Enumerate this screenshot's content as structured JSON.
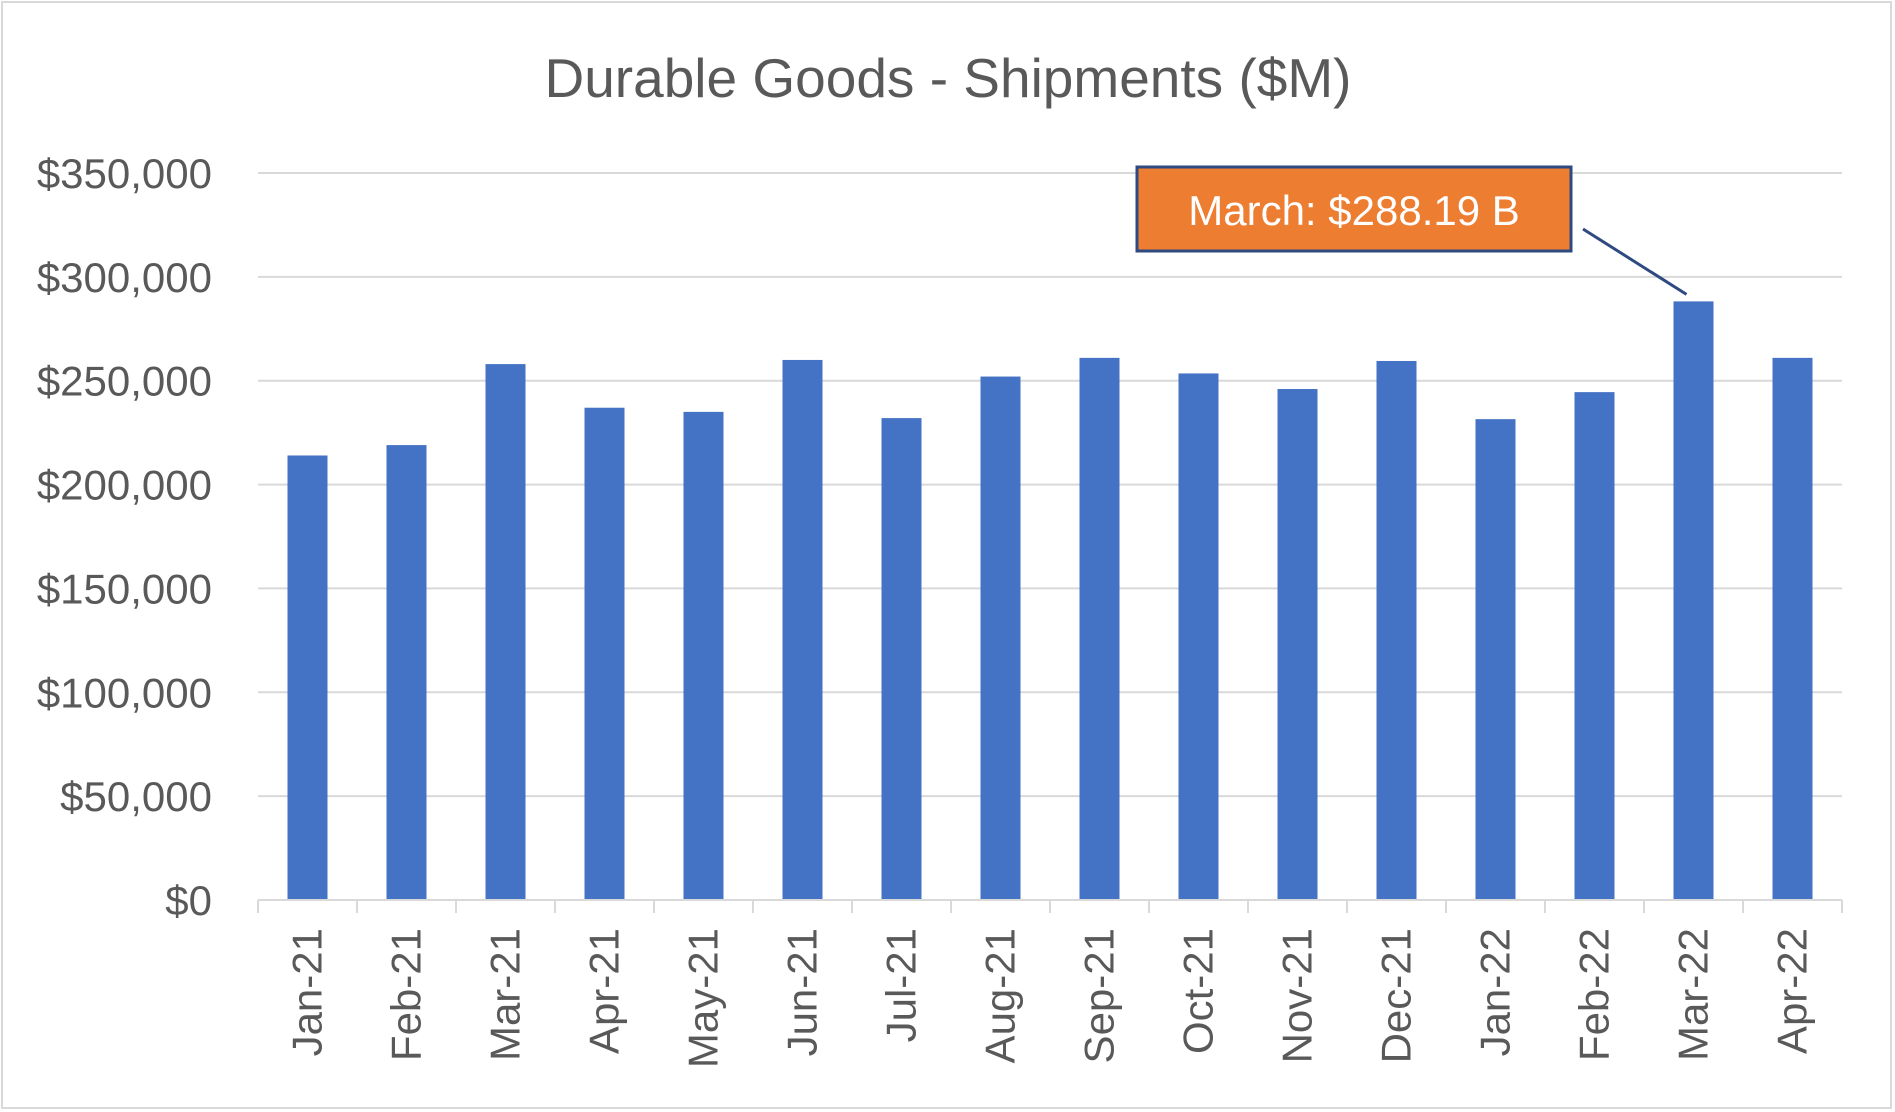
{
  "chart_data": {
    "type": "bar",
    "title": "Durable Goods - Shipments ($M)",
    "xlabel": "",
    "ylabel": "",
    "categories": [
      "Jan-21",
      "Feb-21",
      "Mar-21",
      "Apr-21",
      "May-21",
      "Jun-21",
      "Jul-21",
      "Aug-21",
      "Sep-21",
      "Oct-21",
      "Nov-21",
      "Dec-21",
      "Jan-22",
      "Feb-22",
      "Mar-22",
      "Apr-22"
    ],
    "values": [
      214000,
      219000,
      258000,
      237000,
      235000,
      260000,
      232000,
      252000,
      261000,
      253500,
      246000,
      259500,
      231500,
      244500,
      288190,
      261000
    ],
    "ylim": [
      0,
      350000
    ],
    "yticks": [
      0,
      50000,
      100000,
      150000,
      200000,
      250000,
      300000,
      350000
    ],
    "ytick_labels": [
      "$0",
      "$50,000",
      "$100,000",
      "$150,000",
      "$200,000",
      "$250,000",
      "$300,000",
      "$350,000"
    ],
    "grid": true,
    "legend": "none",
    "bar_color": "#4472c4",
    "annotation": {
      "text": "March: $288.19 B",
      "target_category": "Mar-22",
      "fill_color": "#ed7d31",
      "border_color": "#2f4a80"
    }
  }
}
